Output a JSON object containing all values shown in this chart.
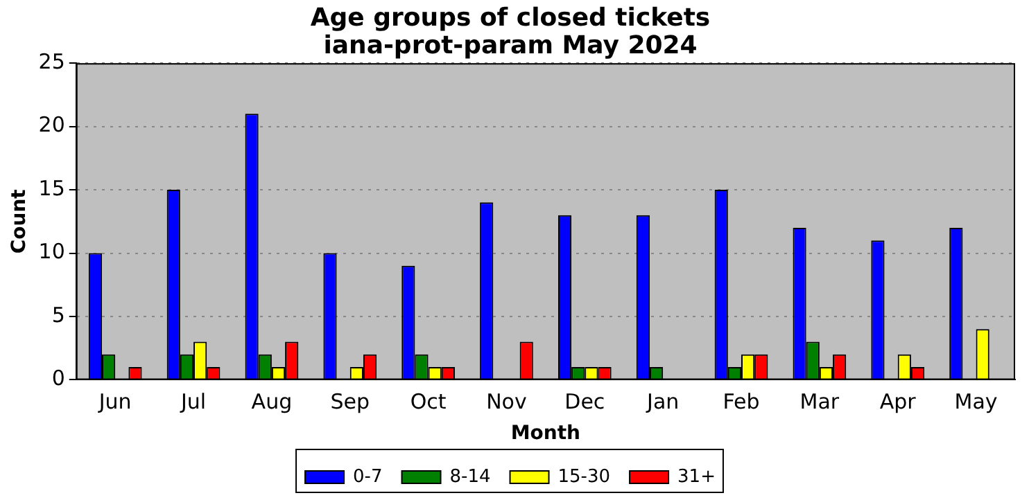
{
  "chart_data": {
    "type": "bar",
    "title": "Age groups of closed tickets\niana-prot-param May 2024",
    "xlabel": "Month",
    "ylabel": "Count",
    "categories": [
      "Jun",
      "Jul",
      "Aug",
      "Sep",
      "Oct",
      "Nov",
      "Dec",
      "Jan",
      "Feb",
      "Mar",
      "Apr",
      "May"
    ],
    "series": [
      {
        "name": "0-7",
        "color": "#0000ff",
        "values": [
          10,
          15,
          21,
          10,
          9,
          14,
          13,
          13,
          15,
          12,
          11,
          12
        ]
      },
      {
        "name": "8-14",
        "color": "#008000",
        "values": [
          2,
          2,
          2,
          0,
          2,
          0,
          1,
          1,
          1,
          3,
          0,
          0
        ]
      },
      {
        "name": "15-30",
        "color": "#ffff00",
        "values": [
          0,
          3,
          1,
          1,
          1,
          0,
          1,
          0,
          2,
          1,
          2,
          4
        ]
      },
      {
        "name": "31+",
        "color": "#ff0000",
        "values": [
          1,
          1,
          3,
          2,
          1,
          3,
          1,
          0,
          2,
          2,
          1,
          0
        ]
      }
    ],
    "ylim": [
      0,
      25
    ],
    "yticks": [
      0,
      5,
      10,
      15,
      20,
      25
    ],
    "grid": "y",
    "legend": "bottom"
  }
}
